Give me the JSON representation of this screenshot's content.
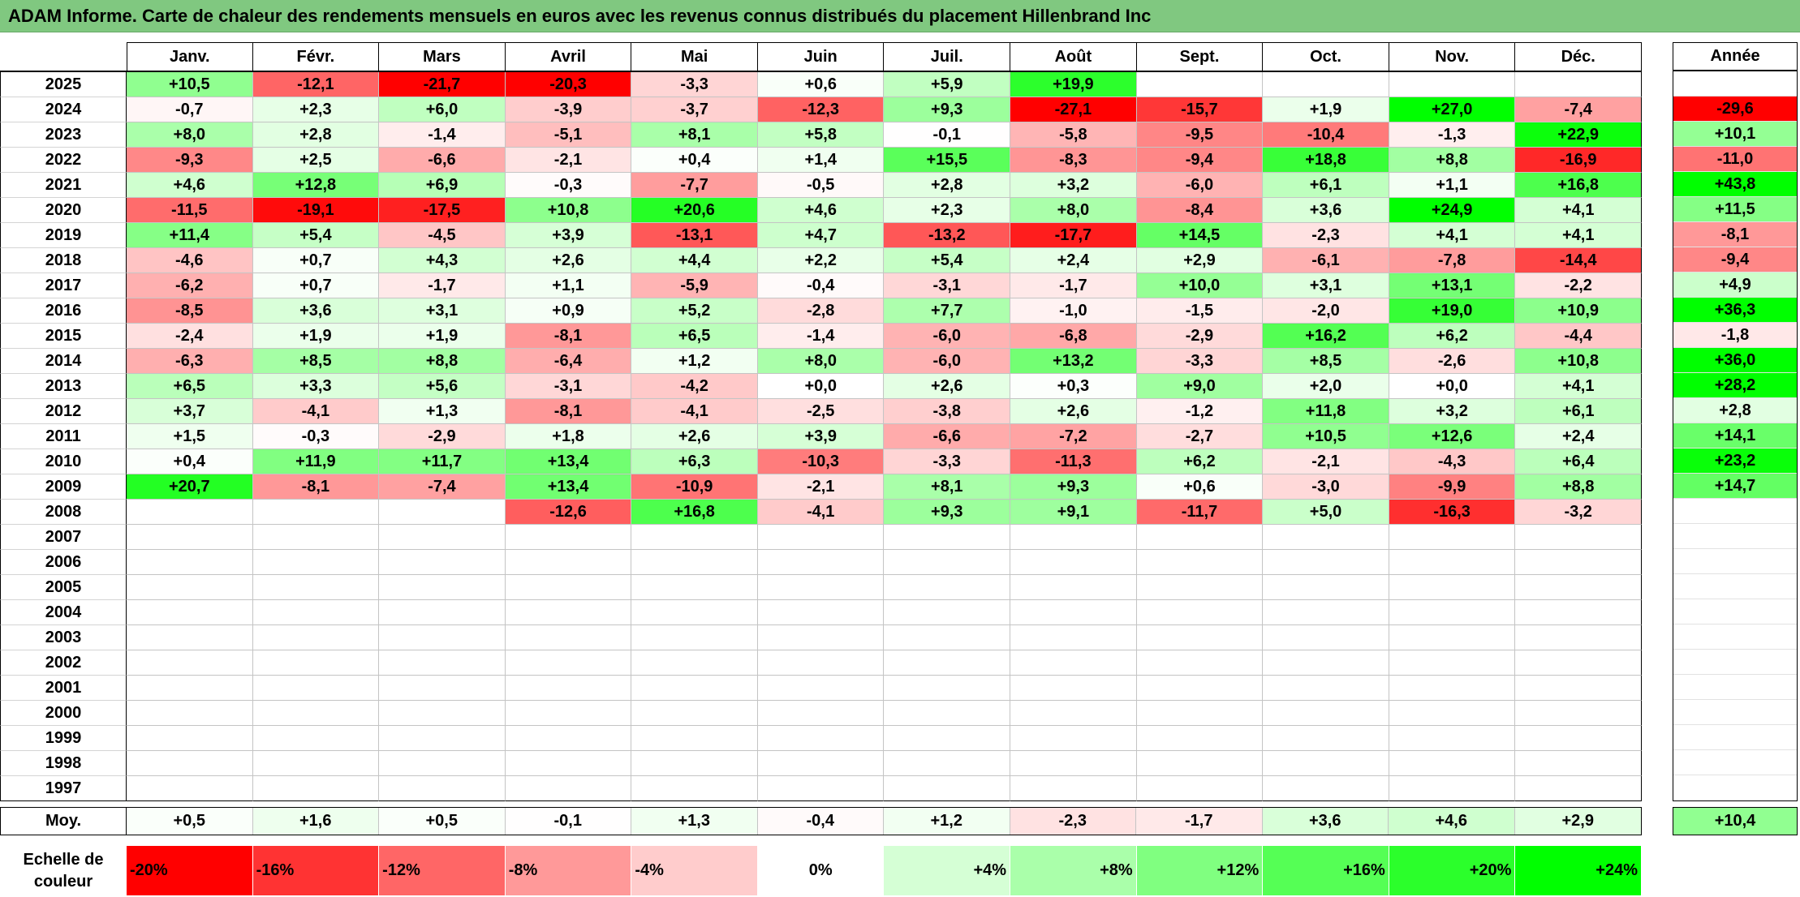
{
  "chart_data": {
    "type": "heatmap",
    "title": "ADAM Informe. Carte de chaleur des rendements mensuels en euros avec les revenus connus distribués du placement Hillenbrand Inc",
    "columns": [
      "Janv.",
      "Févr.",
      "Mars",
      "Avril",
      "Mai",
      "Juin",
      "Juil.",
      "Août",
      "Sept.",
      "Oct.",
      "Nov.",
      "Déc."
    ],
    "annual_header": "Année",
    "rows": [
      {
        "year": "2025",
        "values": [
          "+10,5",
          "-12,1",
          "-21,7",
          "-20,3",
          "-3,3",
          "+0,6",
          "+5,9",
          "+19,9",
          null,
          null,
          null,
          null
        ],
        "annual": null
      },
      {
        "year": "2024",
        "values": [
          "-0,7",
          "+2,3",
          "+6,0",
          "-3,9",
          "-3,7",
          "-12,3",
          "+9,3",
          "-27,1",
          "-15,7",
          "+1,9",
          "+27,0",
          "-7,4"
        ],
        "annual": "-29,6"
      },
      {
        "year": "2023",
        "values": [
          "+8,0",
          "+2,8",
          "-1,4",
          "-5,1",
          "+8,1",
          "+5,8",
          "-0,1",
          "-5,8",
          "-9,5",
          "-10,4",
          "-1,3",
          "+22,9"
        ],
        "annual": "+10,1"
      },
      {
        "year": "2022",
        "values": [
          "-9,3",
          "+2,5",
          "-6,6",
          "-2,1",
          "+0,4",
          "+1,4",
          "+15,5",
          "-8,3",
          "-9,4",
          "+18,8",
          "+8,8",
          "-16,9"
        ],
        "annual": "-11,0"
      },
      {
        "year": "2021",
        "values": [
          "+4,6",
          "+12,8",
          "+6,9",
          "-0,3",
          "-7,7",
          "-0,5",
          "+2,8",
          "+3,2",
          "-6,0",
          "+6,1",
          "+1,1",
          "+16,8"
        ],
        "annual": "+43,8"
      },
      {
        "year": "2020",
        "values": [
          "-11,5",
          "-19,1",
          "-17,5",
          "+10,8",
          "+20,6",
          "+4,6",
          "+2,3",
          "+8,0",
          "-8,4",
          "+3,6",
          "+24,9",
          "+4,1"
        ],
        "annual": "+11,5"
      },
      {
        "year": "2019",
        "values": [
          "+11,4",
          "+5,4",
          "-4,5",
          "+3,9",
          "-13,1",
          "+4,7",
          "-13,2",
          "-17,7",
          "+14,5",
          "-2,3",
          "+4,1",
          "+4,1"
        ],
        "annual": "-8,1"
      },
      {
        "year": "2018",
        "values": [
          "-4,6",
          "+0,7",
          "+4,3",
          "+2,6",
          "+4,4",
          "+2,2",
          "+5,4",
          "+2,4",
          "+2,9",
          "-6,1",
          "-7,8",
          "-14,4"
        ],
        "annual": "-9,4"
      },
      {
        "year": "2017",
        "values": [
          "-6,2",
          "+0,7",
          "-1,7",
          "+1,1",
          "-5,9",
          "-0,4",
          "-3,1",
          "-1,7",
          "+10,0",
          "+3,1",
          "+13,1",
          "-2,2"
        ],
        "annual": "+4,9"
      },
      {
        "year": "2016",
        "values": [
          "-8,5",
          "+3,6",
          "+3,1",
          "+0,9",
          "+5,2",
          "-2,8",
          "+7,7",
          "-1,0",
          "-1,5",
          "-2,0",
          "+19,0",
          "+10,9"
        ],
        "annual": "+36,3"
      },
      {
        "year": "2015",
        "values": [
          "-2,4",
          "+1,9",
          "+1,9",
          "-8,1",
          "+6,5",
          "-1,4",
          "-6,0",
          "-6,8",
          "-2,9",
          "+16,2",
          "+6,2",
          "-4,4"
        ],
        "annual": "-1,8"
      },
      {
        "year": "2014",
        "values": [
          "-6,3",
          "+8,5",
          "+8,8",
          "-6,4",
          "+1,2",
          "+8,0",
          "-6,0",
          "+13,2",
          "-3,3",
          "+8,5",
          "-2,6",
          "+10,8"
        ],
        "annual": "+36,0"
      },
      {
        "year": "2013",
        "values": [
          "+6,5",
          "+3,3",
          "+5,6",
          "-3,1",
          "-4,2",
          "+0,0",
          "+2,6",
          "+0,3",
          "+9,0",
          "+2,0",
          "+0,0",
          "+4,1"
        ],
        "annual": "+28,2"
      },
      {
        "year": "2012",
        "values": [
          "+3,7",
          "-4,1",
          "+1,3",
          "-8,1",
          "-4,1",
          "-2,5",
          "-3,8",
          "+2,6",
          "-1,2",
          "+11,8",
          "+3,2",
          "+6,1"
        ],
        "annual": "+2,8"
      },
      {
        "year": "2011",
        "values": [
          "+1,5",
          "-0,3",
          "-2,9",
          "+1,8",
          "+2,6",
          "+3,9",
          "-6,6",
          "-7,2",
          "-2,7",
          "+10,5",
          "+12,6",
          "+2,4"
        ],
        "annual": "+14,1"
      },
      {
        "year": "2010",
        "values": [
          "+0,4",
          "+11,9",
          "+11,7",
          "+13,4",
          "+6,3",
          "-10,3",
          "-3,3",
          "-11,3",
          "+6,2",
          "-2,1",
          "-4,3",
          "+6,4"
        ],
        "annual": "+23,2"
      },
      {
        "year": "2009",
        "values": [
          "+20,7",
          "-8,1",
          "-7,4",
          "+13,4",
          "-10,9",
          "-2,1",
          "+8,1",
          "+9,3",
          "+0,6",
          "-3,0",
          "-9,9",
          "+8,8"
        ],
        "annual": "+14,7"
      },
      {
        "year": "2008",
        "values": [
          null,
          null,
          null,
          "-12,6",
          "+16,8",
          "-4,1",
          "+9,3",
          "+9,1",
          "-11,7",
          "+5,0",
          "-16,3",
          "-3,2"
        ],
        "annual": null
      },
      {
        "year": "2007",
        "values": [
          null,
          null,
          null,
          null,
          null,
          null,
          null,
          null,
          null,
          null,
          null,
          null
        ],
        "annual": null
      },
      {
        "year": "2006",
        "values": [
          null,
          null,
          null,
          null,
          null,
          null,
          null,
          null,
          null,
          null,
          null,
          null
        ],
        "annual": null
      },
      {
        "year": "2005",
        "values": [
          null,
          null,
          null,
          null,
          null,
          null,
          null,
          null,
          null,
          null,
          null,
          null
        ],
        "annual": null
      },
      {
        "year": "2004",
        "values": [
          null,
          null,
          null,
          null,
          null,
          null,
          null,
          null,
          null,
          null,
          null,
          null
        ],
        "annual": null
      },
      {
        "year": "2003",
        "values": [
          null,
          null,
          null,
          null,
          null,
          null,
          null,
          null,
          null,
          null,
          null,
          null
        ],
        "annual": null
      },
      {
        "year": "2002",
        "values": [
          null,
          null,
          null,
          null,
          null,
          null,
          null,
          null,
          null,
          null,
          null,
          null
        ],
        "annual": null
      },
      {
        "year": "2001",
        "values": [
          null,
          null,
          null,
          null,
          null,
          null,
          null,
          null,
          null,
          null,
          null,
          null
        ],
        "annual": null
      },
      {
        "year": "2000",
        "values": [
          null,
          null,
          null,
          null,
          null,
          null,
          null,
          null,
          null,
          null,
          null,
          null
        ],
        "annual": null
      },
      {
        "year": "1999",
        "values": [
          null,
          null,
          null,
          null,
          null,
          null,
          null,
          null,
          null,
          null,
          null,
          null
        ],
        "annual": null
      },
      {
        "year": "1998",
        "values": [
          null,
          null,
          null,
          null,
          null,
          null,
          null,
          null,
          null,
          null,
          null,
          null
        ],
        "annual": null
      },
      {
        "year": "1997",
        "values": [
          null,
          null,
          null,
          null,
          null,
          null,
          null,
          null,
          null,
          null,
          null,
          null
        ],
        "annual": null
      }
    ],
    "average": {
      "label": "Moy.",
      "values": [
        "+0,5",
        "+1,6",
        "+0,5",
        "-0,1",
        "+1,3",
        "-0,4",
        "+1,2",
        "-2,3",
        "-1,7",
        "+3,6",
        "+4,6",
        "+2,9"
      ],
      "annual": "+10,4"
    },
    "color_scale": {
      "label": "Echelle de couleur",
      "stops": [
        {
          "label": "-20%",
          "color": "#ff0000"
        },
        {
          "label": "-16%",
          "color": "#ff3333"
        },
        {
          "label": "-12%",
          "color": "#ff6666"
        },
        {
          "label": "-8%",
          "color": "#ff9999"
        },
        {
          "label": "-4%",
          "color": "#ffcccc"
        },
        {
          "label": "0%",
          "color": "#ffffff"
        },
        {
          "label": "+4%",
          "color": "#d5ffd5"
        },
        {
          "label": "+8%",
          "color": "#aaffaa"
        },
        {
          "label": "+12%",
          "color": "#80ff80"
        },
        {
          "label": "+16%",
          "color": "#55ff55"
        },
        {
          "label": "+20%",
          "color": "#2bff2b"
        },
        {
          "label": "+24%",
          "color": "#00ff00"
        }
      ]
    }
  }
}
